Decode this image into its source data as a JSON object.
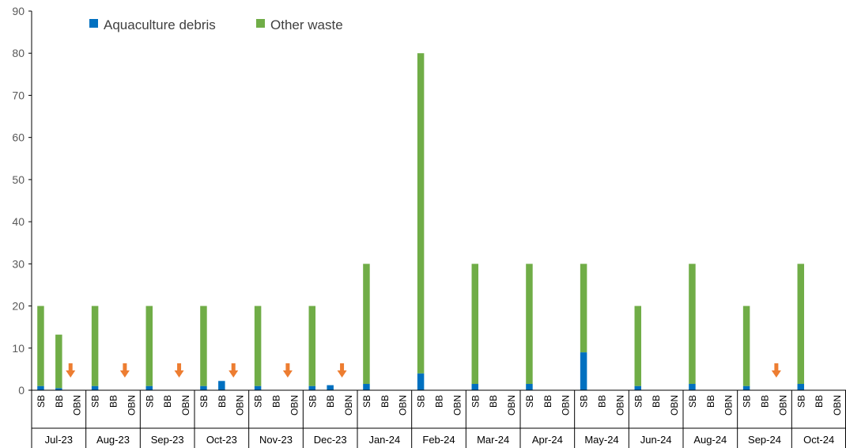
{
  "chart_data": {
    "type": "bar",
    "stacked": true,
    "ylim": [
      0,
      90
    ],
    "yticks": [
      0,
      10,
      20,
      30,
      40,
      50,
      60,
      70,
      80,
      90
    ],
    "grid": false,
    "legend_position": "top-left",
    "subcategories": [
      "SB",
      "BB",
      "OBN"
    ],
    "months": [
      "Jul-23",
      "Aug-23",
      "Sep-23",
      "Oct-23",
      "Nov-23",
      "Dec-23",
      "Jan-24",
      "Feb-24",
      "Mar-24",
      "Apr-24",
      "May-24",
      "Jun-24",
      "Aug-24",
      "Sep-24",
      "Oct-24"
    ],
    "series": [
      {
        "name": "Aquaculture debris",
        "color": "#0070C0",
        "values": [
          [
            1,
            0.5,
            null
          ],
          [
            1,
            null,
            null
          ],
          [
            1,
            null,
            null
          ],
          [
            1,
            2.2,
            null
          ],
          [
            1,
            null,
            null
          ],
          [
            1,
            1.2,
            null
          ],
          [
            1.5,
            null,
            null
          ],
          [
            4,
            null,
            null
          ],
          [
            1.5,
            null,
            null
          ],
          [
            1.5,
            null,
            null
          ],
          [
            9,
            null,
            null
          ],
          [
            1,
            null,
            null
          ],
          [
            1.5,
            null,
            null
          ],
          [
            1,
            null,
            null
          ],
          [
            1.5,
            null,
            null
          ]
        ]
      },
      {
        "name": "Other waste",
        "color": "#70AD47",
        "values": [
          [
            19,
            12.7,
            null
          ],
          [
            19,
            null,
            null
          ],
          [
            19,
            null,
            null
          ],
          [
            19,
            0,
            null
          ],
          [
            19,
            null,
            null
          ],
          [
            19,
            0,
            null
          ],
          [
            28.5,
            null,
            null
          ],
          [
            76,
            null,
            null
          ],
          [
            28.5,
            null,
            null
          ],
          [
            28.5,
            null,
            null
          ],
          [
            21,
            null,
            null
          ],
          [
            19,
            null,
            null
          ],
          [
            28.5,
            null,
            null
          ],
          [
            19,
            null,
            null
          ],
          [
            28.5,
            null,
            null
          ]
        ]
      }
    ],
    "arrow_markers": {
      "icon": "down-arrow-icon",
      "color": "#ED7D31",
      "meaning": "no data",
      "positions": [
        [
          0,
          2
        ],
        [
          1,
          2
        ],
        [
          2,
          2
        ],
        [
          3,
          2
        ],
        [
          4,
          2
        ],
        [
          5,
          2
        ],
        [
          13,
          2
        ]
      ]
    }
  }
}
